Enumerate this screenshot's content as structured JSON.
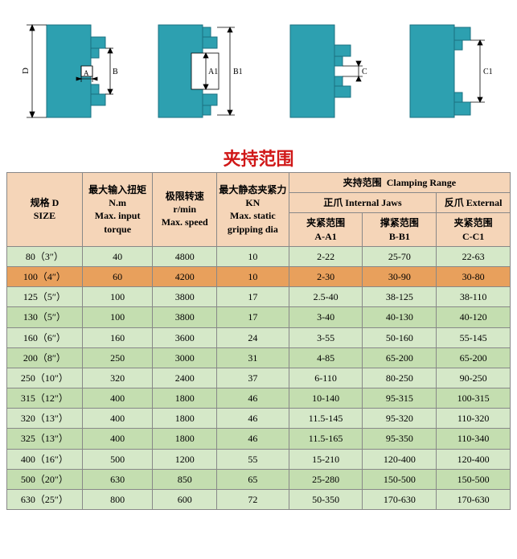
{
  "colors": {
    "diagram_fill": "#2da0b0",
    "diagram_line": "#1a7080",
    "dim_line": "#000000",
    "title_color": "#d01818",
    "header_bg": "#f5d5b8",
    "row_even_bg": "#d5e8c8",
    "row_odd_bg": "#c4deb0",
    "highlight_bg": "#e8a05c",
    "border": "#888888",
    "text": "#000000"
  },
  "fonts": {
    "title_family": "KaiTi, 楷体, serif",
    "title_size_pt": 16,
    "header_size_pt": 10,
    "cell_size_pt": 10
  },
  "diagram_labels": {
    "d": "D",
    "a": "A",
    "b": "B",
    "a1": "A1",
    "b1": "B1",
    "c": "C",
    "c1": "C1"
  },
  "title": "夹持范围",
  "headers": {
    "size_cn": "规格 D",
    "size_en": "SIZE",
    "torque_cn": "最大输入扭矩 N.m",
    "torque_en": "Max. input torque",
    "speed_cn": "极限转速 r/min",
    "speed_en": "Max. speed",
    "grip_cn": "最大静态夹紧力 KN",
    "grip_en": "Max. static gripping dia",
    "range_cn": "夹持范围",
    "range_en": "Clamping Range",
    "internal_cn": "正爪 Internal Jaws",
    "external_cn": "反爪 External",
    "aa1_cn": "夹紧范围",
    "aa1_en": "A-A1",
    "bb1_cn": "撑紧范围",
    "bb1_en": "B-B1",
    "cc1_cn": "夹紧范围",
    "cc1_en": "C-C1"
  },
  "highlight_row_index": 1,
  "rows": [
    {
      "size": "80（3″）",
      "torque": "40",
      "speed": "4800",
      "grip": "10",
      "aa1": "2-22",
      "bb1": "25-70",
      "cc1": "22-63"
    },
    {
      "size": "100（4″）",
      "torque": "60",
      "speed": "4200",
      "grip": "10",
      "aa1": "2-30",
      "bb1": "30-90",
      "cc1": "30-80"
    },
    {
      "size": "125（5″）",
      "torque": "100",
      "speed": "3800",
      "grip": "17",
      "aa1": "2.5-40",
      "bb1": "38-125",
      "cc1": "38-110"
    },
    {
      "size": "130（5″）",
      "torque": "100",
      "speed": "3800",
      "grip": "17",
      "aa1": "3-40",
      "bb1": "40-130",
      "cc1": "40-120"
    },
    {
      "size": "160（6″）",
      "torque": "160",
      "speed": "3600",
      "grip": "24",
      "aa1": "3-55",
      "bb1": "50-160",
      "cc1": "55-145"
    },
    {
      "size": "200（8″）",
      "torque": "250",
      "speed": "3000",
      "grip": "31",
      "aa1": "4-85",
      "bb1": "65-200",
      "cc1": "65-200"
    },
    {
      "size": "250（10″）",
      "torque": "320",
      "speed": "2400",
      "grip": "37",
      "aa1": "6-110",
      "bb1": "80-250",
      "cc1": "90-250"
    },
    {
      "size": "315（12″）",
      "torque": "400",
      "speed": "1800",
      "grip": "46",
      "aa1": "10-140",
      "bb1": "95-315",
      "cc1": "100-315"
    },
    {
      "size": "320（13″）",
      "torque": "400",
      "speed": "1800",
      "grip": "46",
      "aa1": "11.5-145",
      "bb1": "95-320",
      "cc1": "110-320"
    },
    {
      "size": "325（13″）",
      "torque": "400",
      "speed": "1800",
      "grip": "46",
      "aa1": "11.5-165",
      "bb1": "95-350",
      "cc1": "110-340"
    },
    {
      "size": "400（16″）",
      "torque": "500",
      "speed": "1200",
      "grip": "55",
      "aa1": "15-210",
      "bb1": "120-400",
      "cc1": "120-400"
    },
    {
      "size": "500（20″）",
      "torque": "630",
      "speed": "850",
      "grip": "65",
      "aa1": "25-280",
      "bb1": "150-500",
      "cc1": "150-500"
    },
    {
      "size": "630（25″）",
      "torque": "800",
      "speed": "600",
      "grip": "72",
      "aa1": "50-350",
      "bb1": "170-630",
      "cc1": "170-630"
    }
  ]
}
